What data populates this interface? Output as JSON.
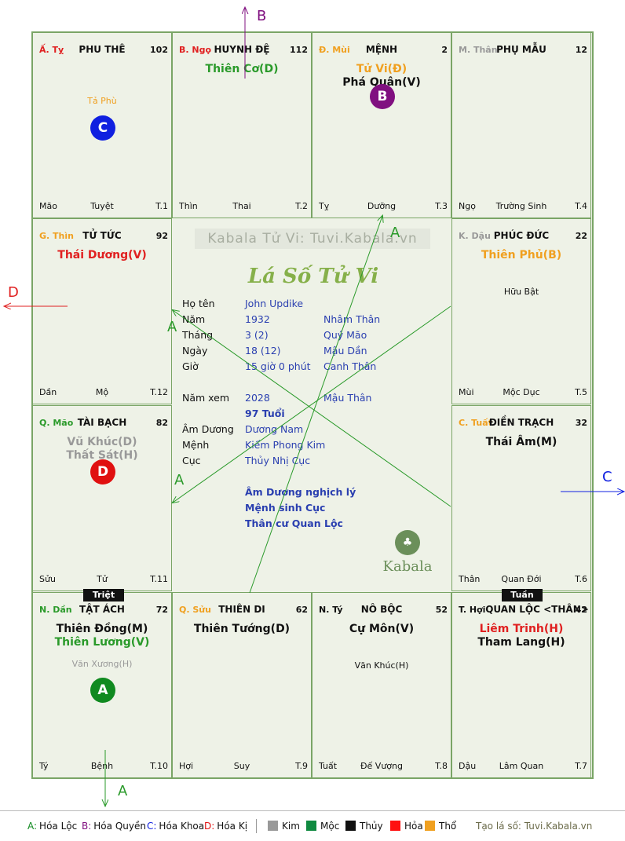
{
  "cells": [
    {
      "branch": "Ấ. Tỵ",
      "branch_color": "#e02020",
      "palace": "PHU THÊ",
      "num": "102",
      "major": [],
      "minor": "Tả Phù",
      "minor_color": "#f0a020",
      "badge": "C",
      "badge_color": "#1020e0",
      "bl": "Mão",
      "bm": "Tuyệt",
      "br": "T.1"
    },
    {
      "branch": "B. Ngọ",
      "branch_color": "#e02020",
      "palace": "HUYNH ĐỆ",
      "num": "112",
      "major": [
        {
          "t": "Thiên Cơ(D)",
          "c": "#2a9a2a"
        }
      ],
      "minor": "",
      "badge": "",
      "bl": "Thìn",
      "bm": "Thai",
      "br": "T.2"
    },
    {
      "branch": "Đ. Mùi",
      "branch_color": "#f0a020",
      "palace": "MỆNH",
      "num": "2",
      "major": [
        {
          "t": "Tử Vi(Đ)",
          "c": "#f0a020"
        },
        {
          "t": "Phá Quân(V)",
          "c": "#111111"
        }
      ],
      "minor": "",
      "badge": "B",
      "badge_color": "#801080",
      "bl": "Tỵ",
      "bm": "Dưỡng",
      "br": "T.3"
    },
    {
      "branch": "M. Thân",
      "branch_color": "#999999",
      "palace": "PHỤ MẪU",
      "num": "12",
      "major": [],
      "minor": "",
      "badge": "",
      "bl": "Ngọ",
      "bm": "Trường Sinh",
      "br": "T.4"
    },
    {
      "branch": "G. Thìn",
      "branch_color": "#f0a020",
      "palace": "TỬ TỨC",
      "num": "92",
      "major": [
        {
          "t": "Thái Dương(V)",
          "c": "#e02020"
        }
      ],
      "minor": "",
      "badge": "",
      "bl": "Dần",
      "bm": "Mộ",
      "br": "T.12"
    },
    {
      "branch": "K. Dậu",
      "branch_color": "#999999",
      "palace": "PHÚC ĐỨC",
      "num": "22",
      "major": [
        {
          "t": "Thiên Phủ(B)",
          "c": "#f0a020"
        }
      ],
      "minor": "Hữu Bật",
      "minor_color": "#111111",
      "badge": "",
      "bl": "Mùi",
      "bm": "Mộc Dục",
      "br": "T.5"
    },
    {
      "branch": "Q. Mão",
      "branch_color": "#2a9a2a",
      "palace": "TÀI BẠCH",
      "num": "82",
      "major": [
        {
          "t": "Vũ Khúc(D)",
          "c": "#999999"
        },
        {
          "t": "Thất Sát(H)",
          "c": "#999999"
        }
      ],
      "minor": "",
      "badge": "D",
      "badge_color": "#e01010",
      "bl": "Sửu",
      "bm": "Tử",
      "br": "T.11"
    },
    {
      "branch": "C. Tuất",
      "branch_color": "#f0a020",
      "palace": "ĐIỀN TRẠCH",
      "num": "32",
      "major": [
        {
          "t": "Thái Âm(M)",
          "c": "#111111"
        }
      ],
      "minor": "",
      "badge": "",
      "bl": "Thân",
      "bm": "Quan Đới",
      "br": "T.6"
    },
    {
      "branch": "N. Dần",
      "branch_color": "#2a9a2a",
      "palace": "TẬT ÁCH",
      "num": "72",
      "major": [
        {
          "t": "Thiên Đồng(M)",
          "c": "#111111"
        },
        {
          "t": "Thiên Lương(V)",
          "c": "#2a9a2a"
        }
      ],
      "minor": "Văn Xương(H)",
      "minor_color": "#999999",
      "badge": "A",
      "badge_color": "#108a20",
      "bl": "Tý",
      "bm": "Bệnh",
      "br": "T.10"
    },
    {
      "branch": "Q. Sửu",
      "branch_color": "#f0a020",
      "palace": "THIÊN DI",
      "num": "62",
      "major": [
        {
          "t": "Thiên Tướng(D)",
          "c": "#111111"
        }
      ],
      "minor": "",
      "badge": "",
      "bl": "Hợi",
      "bm": "Suy",
      "br": "T.9"
    },
    {
      "branch": "N. Tý",
      "branch_color": "#111111",
      "palace": "NÔ BỘC",
      "num": "52",
      "major": [
        {
          "t": "Cự Môn(V)",
          "c": "#111111"
        }
      ],
      "minor": "Văn Khúc(H)",
      "minor_color": "#111111",
      "badge": "",
      "bl": "Tuất",
      "bm": "Đế Vượng",
      "br": "T.8"
    },
    {
      "branch": "T. Hợi",
      "branch_color": "#111111",
      "palace": "QUAN LỘC <THÂN>",
      "num": "42",
      "major": [
        {
          "t": "Liêm Trinh(H)",
          "c": "#e02020"
        },
        {
          "t": "Tham Lang(H)",
          "c": "#111111"
        }
      ],
      "minor": "",
      "badge": "",
      "bl": "Dậu",
      "bm": "Lâm Quan",
      "br": "T.7"
    }
  ],
  "tags": {
    "triet": "Triệt",
    "tuan": "Tuần"
  },
  "center": {
    "watermark": "Kabala Tử Vi: Tuvi.Kabala.vn",
    "title": "Lá Số Tử Vi",
    "rows": [
      {
        "label": "Họ tên",
        "v1": "John Updike",
        "v2": ""
      },
      {
        "label": "Năm",
        "v1": "1932",
        "v2": "Nhâm Thân"
      },
      {
        "label": "Tháng",
        "v1": "3  (2)",
        "v2": "Quý Mão"
      },
      {
        "label": "Ngày",
        "v1": "18  (12)",
        "v2": "Mậu Dần"
      },
      {
        "label": "Giờ",
        "v1": "15 giờ 0 phút",
        "v2": "Canh Thân"
      },
      {
        "label": "Năm xem",
        "v1": "2028",
        "v2": "Mậu Thân"
      },
      {
        "label": "",
        "v1": "97 Tuổi",
        "v2": ""
      },
      {
        "label": "Âm Dương",
        "v1": "Dương Nam",
        "v2": ""
      },
      {
        "label": "Mệnh",
        "v1": "Kiếm Phong Kim",
        "v2": ""
      },
      {
        "label": "Cục",
        "v1": "Thủy Nhị Cục",
        "v2": ""
      }
    ],
    "notes": [
      "Âm Dương nghịch lý",
      "Mệnh sinh Cục",
      "Thân cư Quan Lộc"
    ],
    "logo_text": "Kabala"
  },
  "arrow_labels": {
    "b": "B",
    "d": "D",
    "c": "C",
    "a1": "A",
    "a2": "A",
    "a3": "A",
    "a4": "A"
  },
  "legend": {
    "items": [
      {
        "k": "A:",
        "v": "Hóa Lộc",
        "c": "#108a20"
      },
      {
        "k": "B:",
        "v": "Hóa Quyền",
        "c": "#801080"
      },
      {
        "k": "C:",
        "v": "Hóa Khoa",
        "c": "#1020e0"
      },
      {
        "k": "D:",
        "v": "Hóa Kị",
        "c": "#e01010"
      }
    ],
    "elements": [
      {
        "name": "Kim",
        "color": "#999999"
      },
      {
        "name": "Mộc",
        "color": "#108a40"
      },
      {
        "name": "Thủy",
        "color": "#111111"
      },
      {
        "name": "Hỏa",
        "color": "#ff1010"
      },
      {
        "name": "Thổ",
        "color": "#f0a020"
      }
    ],
    "site": "Tạo lá số: Tuvi.Kabala.vn"
  }
}
